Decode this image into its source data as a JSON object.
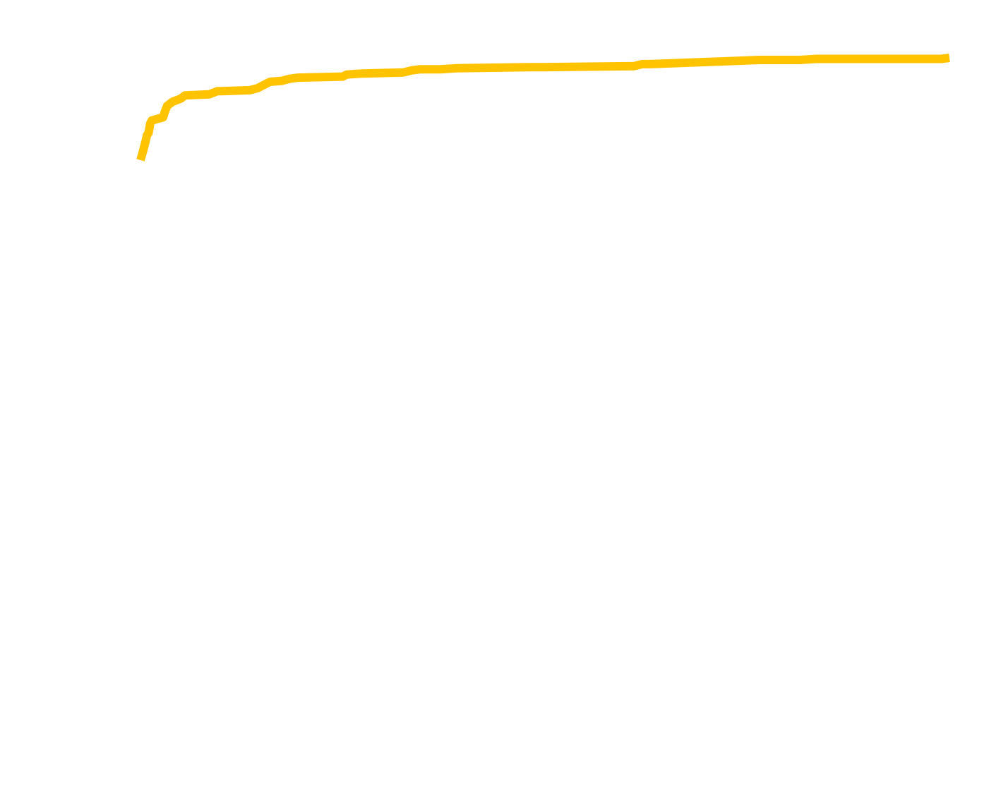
{
  "chart_data": {
    "type": "line",
    "title": "",
    "xlabel": "",
    "ylabel": "",
    "xlim": [
      0,
      100
    ],
    "ylim": [
      0,
      100
    ],
    "grid": false,
    "legend": "none",
    "series": [
      {
        "color": "#ffc300",
        "x": [
          0.0,
          0.3,
          0.6,
          0.8,
          1.0,
          1.2,
          1.4,
          2.8,
          3.0,
          3.3,
          4.0,
          5.0,
          5.5,
          8.5,
          9.5,
          10.0,
          13.5,
          14.5,
          15.5,
          16.0,
          17.5,
          18.5,
          19.5,
          25.0,
          25.5,
          27.5,
          32.5,
          33.5,
          34.5,
          37.0,
          39.0,
          48.0,
          49.5,
          61.0,
          62.0,
          62.5,
          63.0,
          70.0,
          76.5,
          81.5,
          83.5,
          94.5,
          99.0,
          100.0
        ],
        "y": [
          91.0,
          91.8,
          92.7,
          93.4,
          93.6,
          94.5,
          94.8,
          95.1,
          95.6,
          96.2,
          96.6,
          96.9,
          97.2,
          97.3,
          97.6,
          97.6,
          97.7,
          97.9,
          98.3,
          98.5,
          98.6,
          98.8,
          98.9,
          99.0,
          99.2,
          99.3,
          99.4,
          99.6,
          99.7,
          99.7,
          99.8,
          99.9,
          99.9,
          100.0,
          100.2,
          100.2,
          100.2,
          100.4,
          100.6,
          100.6,
          100.7,
          100.7,
          100.7,
          100.8
        ]
      }
    ]
  }
}
